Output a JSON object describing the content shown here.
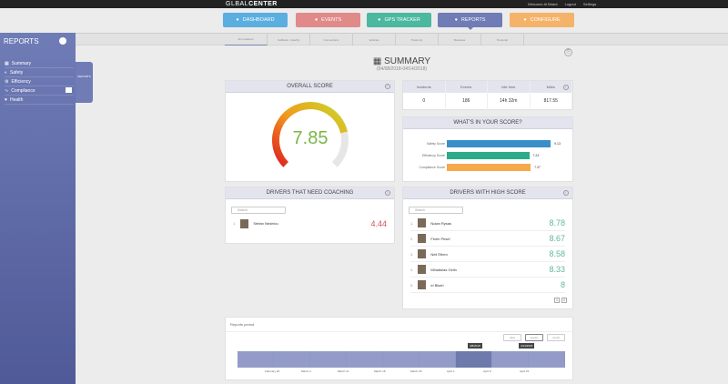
{
  "topbar": {
    "logo_a": "GL",
    "logo_b": "BAL",
    "logo_c": "CENTER",
    "welcome": "Welcome Al Briant",
    "logout": "Logout",
    "settings": "Settings"
  },
  "nav": [
    {
      "label": "DASHBOARD",
      "color": "#5aaee0"
    },
    {
      "label": "EVENTS",
      "color": "#e08a8a"
    },
    {
      "label": "GPS TRACKER",
      "color": "#4cb8a0"
    },
    {
      "label": "REPORTS",
      "color": "#6f7cb6"
    },
    {
      "label": "CONFIGURE",
      "color": "#f5b36a"
    }
  ],
  "subtabs": [
    "All Locations",
    "Softbank - Nearby",
    "Connections",
    "Vehicles",
    "Trade Up",
    "Business",
    "Personal"
  ],
  "sidebar": {
    "title": "REPORTS",
    "items": [
      {
        "label": "Summary",
        "icon": "chart-icon"
      },
      {
        "label": "Safety",
        "icon": "shield-icon"
      },
      {
        "label": "Efficiency",
        "icon": "gear-icon"
      },
      {
        "label": "Compliance",
        "icon": "pulse-icon"
      },
      {
        "label": "Health",
        "icon": "heart-icon"
      }
    ],
    "flyout_label": "REPORTS"
  },
  "summary": {
    "title": "SUMMARY",
    "date_range": "(04/08/2018-04/14/2018)"
  },
  "overall": {
    "title": "OVERALL SCORE",
    "score": "7.85",
    "score_value": 7.85,
    "max": 10
  },
  "stats": {
    "headers": [
      "Incidents",
      "Events",
      "Idle time",
      "Miles"
    ],
    "values": [
      "0",
      "186",
      "14h 32m",
      "817.55"
    ]
  },
  "breakdown": {
    "title": "WHAT'S IN YOUR SCORE?",
    "items": [
      {
        "label": "Safety Score",
        "value": "9.13",
        "num": 9.13,
        "color": "#3a8fc8"
      },
      {
        "label": "Efficiency Score",
        "value": "7.24",
        "num": 7.24,
        "color": "#2bab8a"
      },
      {
        "label": "Compliance Score",
        "value": "7.37",
        "num": 7.37,
        "color": "#f5a94a"
      }
    ]
  },
  "coaching": {
    "title": "DRIVERS THAT NEED COACHING",
    "search_placeholder": "Search",
    "drivers": [
      {
        "rank": "1.",
        "name": "Stefan Nedelcu",
        "score": "4.44"
      }
    ]
  },
  "high": {
    "title": "DRIVERS WITH HIGH SCORE",
    "search_placeholder": "Search",
    "drivers": [
      {
        "rank": "1.",
        "name": "Nolan Rysas",
        "score": "8.78"
      },
      {
        "rank": "2.",
        "name": "Florin Pesel",
        "score": "8.67"
      },
      {
        "rank": "3.",
        "name": "Nell Ethen",
        "score": "8.58"
      },
      {
        "rank": "4.",
        "name": "Mihalkeas Gelin",
        "score": "8.33"
      },
      {
        "rank": "5.",
        "name": "ei Bilutri",
        "score": "8"
      }
    ],
    "pages": [
      "1",
      "2"
    ]
  },
  "period": {
    "title": "Reports period",
    "buttons": [
      "daily",
      "weekly",
      "month"
    ],
    "start_flag": "4/8/2018",
    "end_flag": "4/14/2018",
    "ticks": [
      "February 26",
      "March 4",
      "March 11",
      "March 18",
      "March 25",
      "April 1",
      "April 8",
      "April 15"
    ]
  }
}
